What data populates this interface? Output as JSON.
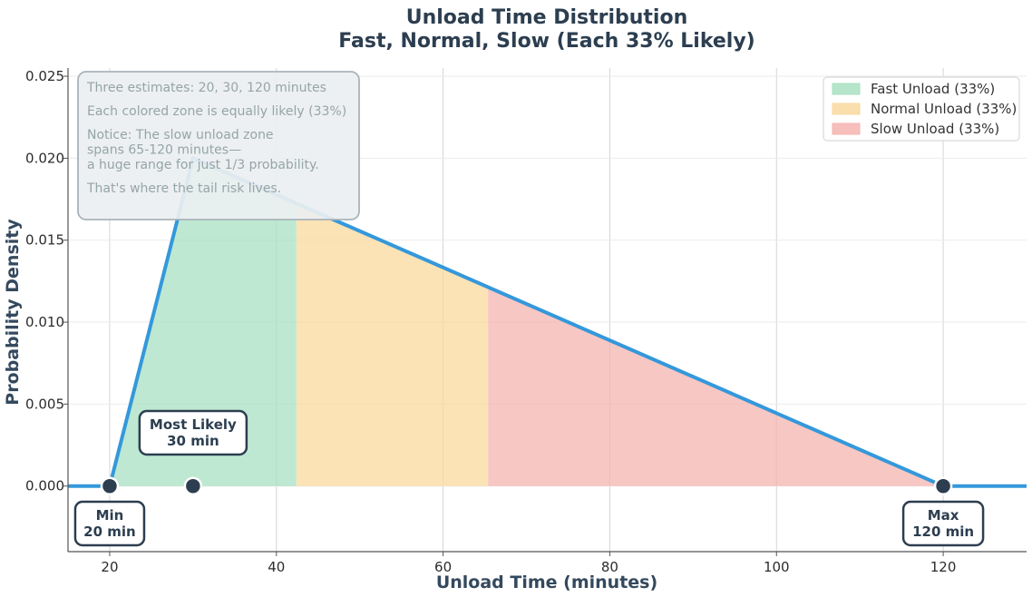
{
  "chart_data": {
    "type": "area",
    "title": "Unload Time Distribution",
    "subtitle": "Fast, Normal, Slow (Each 33% Likely)",
    "xlabel": "Unload Time (minutes)",
    "ylabel": "Probability Density",
    "xlim": [
      15,
      130
    ],
    "ylim": [
      -0.004,
      0.0255
    ],
    "x_ticks": [
      20,
      40,
      60,
      80,
      100,
      120
    ],
    "x_tick_labels": [
      "20",
      "40",
      "60",
      "80",
      "100",
      "120"
    ],
    "y_ticks": [
      0.0,
      0.005,
      0.01,
      0.015,
      0.02,
      0.025
    ],
    "y_tick_labels": [
      "0.000",
      "0.005",
      "0.010",
      "0.015",
      "0.020",
      "0.025"
    ],
    "grid": true,
    "legend_position": "top-right",
    "distribution": {
      "kind": "triangular",
      "min": 20,
      "mode": 30,
      "max": 120,
      "peak_density": 0.02,
      "color": "#3498db"
    },
    "zones": [
      {
        "name": "Fast Unload (33%)",
        "x_start": 20,
        "x_end": 42.4,
        "color": "#a8e0c2"
      },
      {
        "name": "Normal Unload (33%)",
        "x_start": 42.4,
        "x_end": 65.4,
        "color": "#f9d99e"
      },
      {
        "name": "Slow Unload (33%)",
        "x_start": 65.4,
        "x_end": 120,
        "color": "#f4b4b0"
      }
    ],
    "markers": [
      {
        "x": 20,
        "y": 0,
        "label_line1": "Min",
        "label_line2": "20 min"
      },
      {
        "x": 30,
        "y": 0,
        "label_line1": "Most Likely",
        "label_line2": "30 min"
      },
      {
        "x": 120,
        "y": 0,
        "label_line1": "Max",
        "label_line2": "120 min"
      }
    ],
    "annotation_lines": [
      "Three estimates: 20, 30, 120 minutes",
      "",
      "Each colored zone is equally likely (33%)",
      "",
      "Notice: The slow unload zone",
      "spans 65-120 minutes—",
      "a huge range for just 1/3 probability.",
      "",
      "That's where the tail risk lives."
    ]
  }
}
